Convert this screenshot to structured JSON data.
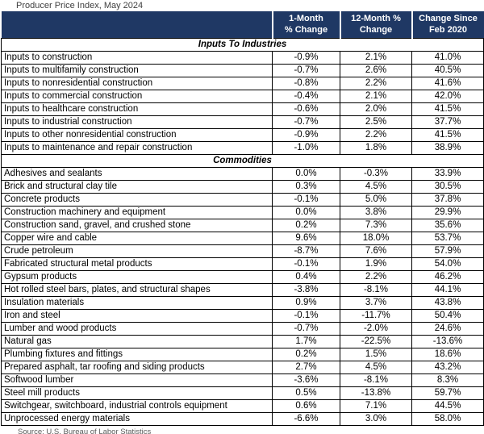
{
  "title": "Producer Price Index, May 2024",
  "source": "Source: U.S. Bureau of Labor Statistics",
  "colors": {
    "header_bg": "#1F3864",
    "header_text": "#FFFFFF",
    "border": "#000000",
    "title_text": "#404040",
    "source_text": "#595959"
  },
  "chart_data": {
    "type": "table",
    "title": "Producer Price Index, May 2024",
    "source": "Source: U.S. Bureau of Labor Statistics",
    "columns": [
      {
        "line1": "",
        "line2": ""
      },
      {
        "line1": "1-Month",
        "line2": "% Change"
      },
      {
        "line1": "12-Month %",
        "line2": "Change"
      },
      {
        "line1": "Change Since",
        "line2": "Feb 2020"
      }
    ],
    "sections": [
      {
        "label": "Inputs To Industries",
        "rows": [
          [
            "Inputs to construction",
            "-0.9%",
            "2.1%",
            "41.0%"
          ],
          [
            "Inputs to multifamily construction",
            "-0.7%",
            "2.6%",
            "40.5%"
          ],
          [
            "Inputs to nonresidential construction",
            "-0.8%",
            "2.2%",
            "41.6%"
          ],
          [
            "Inputs to commercial construction",
            "-0.4%",
            "2.1%",
            "42.0%"
          ],
          [
            "Inputs to healthcare construction",
            "-0.6%",
            "2.0%",
            "41.5%"
          ],
          [
            "Inputs to industrial construction",
            "-0.7%",
            "2.5%",
            "37.7%"
          ],
          [
            "Inputs to other nonresidential construction",
            "-0.9%",
            "2.2%",
            "41.5%"
          ],
          [
            "Inputs to maintenance and repair construction",
            "-1.0%",
            "1.8%",
            "38.9%"
          ]
        ]
      },
      {
        "label": "Commodities",
        "rows": [
          [
            "Adhesives and sealants",
            "0.0%",
            "-0.3%",
            "33.9%"
          ],
          [
            "Brick and structural clay tile",
            "0.3%",
            "4.5%",
            "30.5%"
          ],
          [
            "Concrete products",
            "-0.1%",
            "5.0%",
            "37.8%"
          ],
          [
            "Construction machinery and equipment",
            "0.0%",
            "3.8%",
            "29.9%"
          ],
          [
            "Construction sand, gravel, and crushed stone",
            "0.2%",
            "7.3%",
            "35.6%"
          ],
          [
            "Copper wire and cable",
            "9.6%",
            "18.0%",
            "53.7%"
          ],
          [
            "Crude petroleum",
            "-8.7%",
            "7.6%",
            "57.9%"
          ],
          [
            "Fabricated structural metal products",
            "-0.1%",
            "1.9%",
            "54.0%"
          ],
          [
            "Gypsum products",
            "0.4%",
            "2.2%",
            "46.2%"
          ],
          [
            "Hot rolled steel bars, plates, and structural shapes",
            "-3.8%",
            "-8.1%",
            "44.1%"
          ],
          [
            "Insulation materials",
            "0.9%",
            "3.7%",
            "43.8%"
          ],
          [
            "Iron and steel",
            "-0.1%",
            "-11.7%",
            "50.4%"
          ],
          [
            "Lumber and wood products",
            "-0.7%",
            "-2.0%",
            "24.6%"
          ],
          [
            "Natural gas",
            "1.7%",
            "-22.5%",
            "-13.6%"
          ],
          [
            "Plumbing fixtures and fittings",
            "0.2%",
            "1.5%",
            "18.6%"
          ],
          [
            "Prepared asphalt, tar roofing and siding products",
            "2.7%",
            "4.5%",
            "43.2%"
          ],
          [
            "Softwood lumber",
            "-3.6%",
            "-8.1%",
            "8.3%"
          ],
          [
            "Steel mill products",
            "0.5%",
            "-13.8%",
            "59.7%"
          ],
          [
            "Switchgear, switchboard, industrial controls equipment",
            "0.6%",
            "7.1%",
            "44.5%"
          ],
          [
            "Unprocessed energy materials",
            "-6.6%",
            "3.0%",
            "58.0%"
          ]
        ]
      }
    ]
  }
}
